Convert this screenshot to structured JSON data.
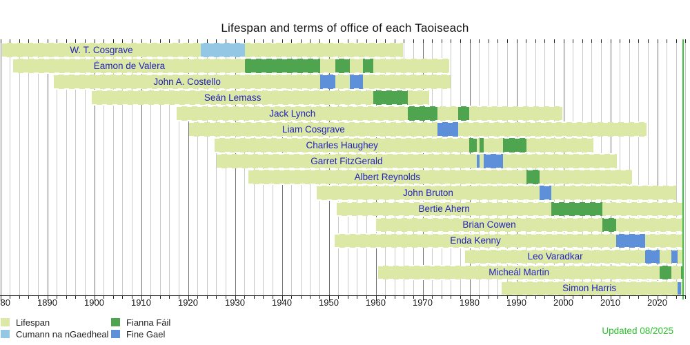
{
  "title": "Lifespan and terms of office of each Taoiseach",
  "updated_label": "Updated 08/2025",
  "colors": {
    "lifespan": "#dce8a6",
    "cumann_na_ngaedheal": "#93c7e3",
    "fianna_fail": "#4fa44f",
    "fine_gael": "#5e90da",
    "now_line": "#3cc23c",
    "name_text": "#2222b8",
    "updated_text": "#2bbf2b",
    "grid_minor": "#c9c9c9",
    "grid_major": "#6e6e6e",
    "axis": "#222222"
  },
  "legend": {
    "items": [
      {
        "label": "Lifespan",
        "color_key": "lifespan"
      },
      {
        "label": "Cumann na nGaedheal",
        "color_key": "cumann_na_ngaedheal"
      },
      {
        "label": "Fianna Fáil",
        "color_key": "fianna_fail"
      },
      {
        "label": "Fine Gael",
        "color_key": "fine_gael"
      }
    ]
  },
  "chart_data": {
    "type": "gantt",
    "title": "Lifespan and terms of office of each Taoiseach",
    "x_axis": {
      "start": 1880,
      "end": 2027,
      "major_tick_interval": 10,
      "minor_tick_interval": 2,
      "tick_labels": [
        "1880",
        "1890",
        "1900",
        "1910",
        "1920",
        "1930",
        "1940",
        "1950",
        "1960",
        "1970",
        "1980",
        "1990",
        "2000",
        "2010",
        "2020"
      ]
    },
    "now_marker": 2025.58,
    "legend_position": "bottom-left",
    "grid": true,
    "party_color_keys": {
      "Cumann na nGaedheal": "cumann_na_ngaedheal",
      "Fianna Fáil": "fianna_fail",
      "Fine Gael": "fine_gael"
    },
    "people": [
      {
        "name": "W. T. Cosgrave",
        "birth": 1880.43,
        "death": 1965.88,
        "terms": [
          {
            "party": "Cumann na nGaedheal",
            "start": 1922.65,
            "end": 1932.19
          }
        ]
      },
      {
        "name": "Éamon de Valera",
        "birth": 1882.79,
        "death": 1975.66,
        "terms": [
          {
            "party": "Fianna Fáil",
            "start": 1932.19,
            "end": 1948.13
          },
          {
            "party": "Fianna Fáil",
            "start": 1951.45,
            "end": 1954.42
          },
          {
            "party": "Fianna Fáil",
            "start": 1957.22,
            "end": 1959.48
          }
        ]
      },
      {
        "name": "John A. Costello",
        "birth": 1891.47,
        "death": 1976.01,
        "terms": [
          {
            "party": "Fine Gael",
            "start": 1948.13,
            "end": 1951.45
          },
          {
            "party": "Fine Gael",
            "start": 1954.42,
            "end": 1957.22
          }
        ]
      },
      {
        "name": "Seán Lemass",
        "birth": 1899.54,
        "death": 1971.36,
        "terms": [
          {
            "party": "Fianna Fáil",
            "start": 1959.48,
            "end": 1966.86
          }
        ]
      },
      {
        "name": "Jack Lynch",
        "birth": 1917.62,
        "death": 1999.8,
        "terms": [
          {
            "party": "Fianna Fáil",
            "start": 1966.86,
            "end": 1973.2
          },
          {
            "party": "Fianna Fáil",
            "start": 1977.51,
            "end": 1979.94
          }
        ]
      },
      {
        "name": "Liam Cosgrave",
        "birth": 1920.28,
        "death": 2017.76,
        "terms": [
          {
            "party": "Fine Gael",
            "start": 1973.2,
            "end": 1977.51
          }
        ]
      },
      {
        "name": "Charles Haughey",
        "birth": 1925.71,
        "death": 2006.45,
        "terms": [
          {
            "party": "Fianna Fáil",
            "start": 1979.94,
            "end": 1981.49
          },
          {
            "party": "Fianna Fáil",
            "start": 1982.19,
            "end": 1982.95
          },
          {
            "party": "Fianna Fáil",
            "start": 1987.19,
            "end": 1992.11
          }
        ]
      },
      {
        "name": "Garret FitzGerald",
        "birth": 1926.11,
        "death": 2011.38,
        "terms": [
          {
            "party": "Fine Gael",
            "start": 1981.49,
            "end": 1982.19
          },
          {
            "party": "Fine Gael",
            "start": 1982.95,
            "end": 1987.19
          }
        ]
      },
      {
        "name": "Albert Reynolds",
        "birth": 1932.84,
        "death": 2014.64,
        "terms": [
          {
            "party": "Fianna Fáil",
            "start": 1992.11,
            "end": 1994.96
          }
        ]
      },
      {
        "name": "John Bruton",
        "birth": 1947.38,
        "death": 2024.1,
        "terms": [
          {
            "party": "Fine Gael",
            "start": 1994.96,
            "end": 1997.48
          }
        ]
      },
      {
        "name": "Bertie Ahern",
        "birth": 1951.7,
        "death": null,
        "terms": [
          {
            "party": "Fianna Fáil",
            "start": 1997.48,
            "end": 2008.35
          }
        ]
      },
      {
        "name": "Brian Cowen",
        "birth": 1960.03,
        "death": null,
        "terms": [
          {
            "party": "Fianna Fáil",
            "start": 2008.35,
            "end": 2011.19
          }
        ]
      },
      {
        "name": "Enda Kenny",
        "birth": 1951.31,
        "death": null,
        "terms": [
          {
            "party": "Fine Gael",
            "start": 2011.19,
            "end": 2017.45
          }
        ]
      },
      {
        "name": "Leo Varadkar",
        "birth": 1979.05,
        "death": null,
        "terms": [
          {
            "party": "Fine Gael",
            "start": 2017.45,
            "end": 2020.49
          },
          {
            "party": "Fine Gael",
            "start": 2022.96,
            "end": 2024.27
          }
        ]
      },
      {
        "name": "Micheál Martin",
        "birth": 1960.58,
        "death": null,
        "terms": [
          {
            "party": "Fianna Fáil",
            "start": 2020.49,
            "end": 2022.96
          },
          {
            "party": "Fianna Fáil",
            "start": 2025.06,
            "end": null
          }
        ]
      },
      {
        "name": "Simon Harris",
        "birth": 1986.79,
        "death": null,
        "terms": [
          {
            "party": "Fine Gael",
            "start": 2024.27,
            "end": 2025.06
          }
        ]
      }
    ]
  }
}
